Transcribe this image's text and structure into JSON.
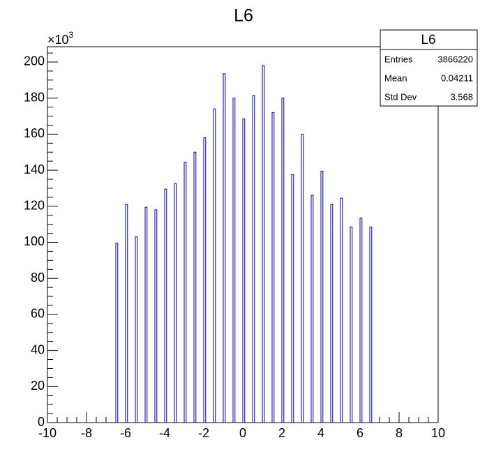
{
  "chart_data": {
    "type": "histogram",
    "title": "L6",
    "y_multiplier": "×10",
    "y_multiplier_exponent": "3",
    "x": [
      -6.5,
      -6.0,
      -5.5,
      -5.0,
      -4.5,
      -4.0,
      -3.5,
      -3.0,
      -2.5,
      -2.0,
      -1.5,
      -1.0,
      -0.5,
      0.0,
      0.5,
      1.0,
      1.5,
      2.0,
      2.5,
      3.0,
      3.5,
      4.0,
      4.5,
      5.0,
      5.5,
      6.0,
      6.5
    ],
    "bin_width": 0.1,
    "values": [
      99.5,
      121,
      103,
      119.5,
      118,
      129.5,
      132.5,
      144.5,
      150,
      158,
      174,
      193.5,
      180,
      168.5,
      181.5,
      198,
      172,
      180,
      137.5,
      160,
      126,
      139.5,
      121,
      124.5,
      108.5,
      113.5,
      108.5
    ],
    "color": "#000099",
    "xlim": [
      -10,
      10
    ],
    "xticks": [
      -10,
      -8,
      -6,
      -4,
      -2,
      0,
      2,
      4,
      6,
      8,
      10
    ],
    "ylim": [
      0,
      208.5
    ],
    "yticks": [
      0,
      20,
      40,
      60,
      80,
      100,
      120,
      140,
      160,
      180,
      200
    ],
    "stats": {
      "title": "L6",
      "rows": [
        [
          "Entries",
          "3866220"
        ],
        [
          "Mean",
          "0.04211"
        ],
        [
          "Std Dev",
          "3.568"
        ]
      ]
    }
  }
}
